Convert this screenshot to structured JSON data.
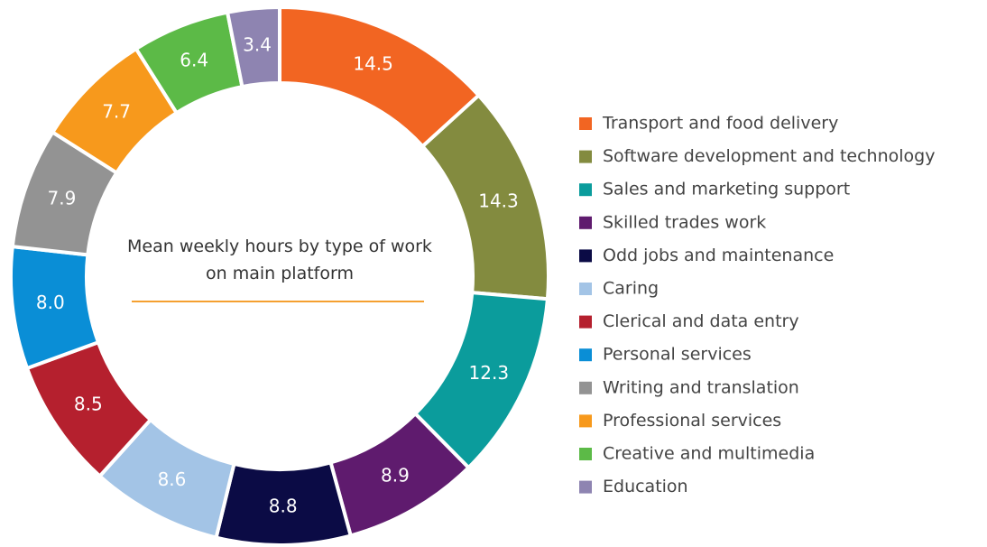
{
  "chart_data": {
    "type": "donut",
    "title": "Mean weekly hours by type of work on main platform",
    "categories": [
      "Transport and food delivery",
      "Software development and technology",
      "Sales and marketing support",
      "Skilled trades work",
      "Odd jobs and maintenance",
      "Caring",
      "Clerical and data entry",
      "Personal services",
      "Writing and translation",
      "Professional services",
      "Creative and multimedia",
      "Education"
    ],
    "values": [
      14.5,
      14.3,
      12.3,
      8.9,
      8.8,
      8.6,
      8.5,
      8.0,
      7.9,
      7.7,
      6.4,
      3.4
    ],
    "value_labels": [
      "14.5",
      "14.3",
      "12.3",
      "8.9",
      "8.8",
      "8.6",
      "8.5",
      "8.0",
      "7.9",
      "7.7",
      "6.4",
      "3.4"
    ],
    "colors": [
      "#f26522",
      "#838b3f",
      "#0b9c9c",
      "#5f1b6e",
      "#0b0b45",
      "#a3c4e6",
      "#b5202e",
      "#0a8ed6",
      "#939393",
      "#f7991c",
      "#5cba47",
      "#8e84b1"
    ],
    "legend": "right"
  }
}
